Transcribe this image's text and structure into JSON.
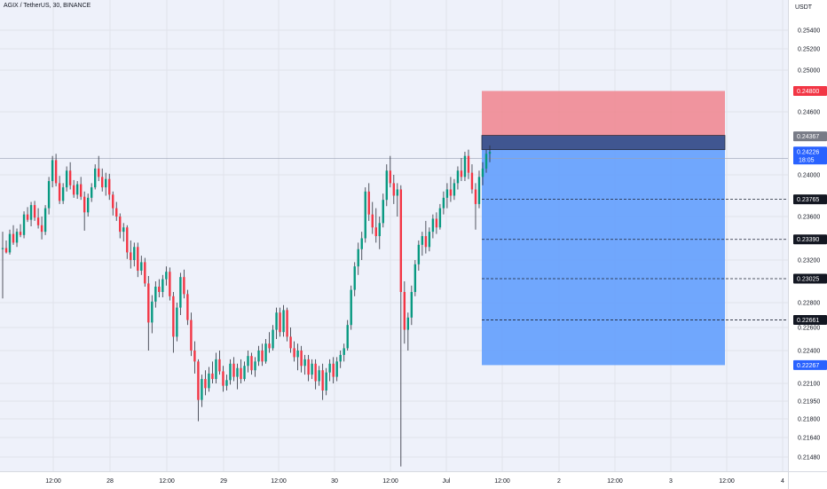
{
  "header": {
    "title": "AGIX / TetherUS, 30, BINANCE"
  },
  "axis": {
    "currency": "USDT"
  },
  "colors": {
    "up": "#089981",
    "down": "#f23645",
    "wick": "#2a2e39",
    "stop_zone": "#f08a93",
    "target_zone": "#5e9cfd",
    "entry_bar": "#3b4e86",
    "background": "#eef1fa"
  },
  "chart_data": {
    "type": "candlestick",
    "symbol": "AGIX / TetherUS",
    "interval": "30",
    "exchange": "BINANCE",
    "y_ticks": [
      "0.25400",
      "0.25200",
      "0.25000",
      "0.24600",
      "0.24000",
      "0.23600",
      "0.23200",
      "0.22800",
      "0.22600",
      "0.22400",
      "0.22100",
      "0.21950",
      "0.21800",
      "0.21640",
      "0.21480"
    ],
    "y_tick_values": [
      0.254,
      0.252,
      0.25,
      0.246,
      0.24,
      0.236,
      0.232,
      0.228,
      0.226,
      0.224,
      0.221,
      0.2195,
      0.218,
      0.2164,
      0.2148
    ],
    "x_labels": [
      "12:00",
      "28",
      "12:00",
      "29",
      "12:00",
      "30",
      "12:00",
      "Jul",
      "12:00",
      "2",
      "12:00",
      "3",
      "12:00",
      "4"
    ],
    "last_price": "0.24226",
    "countdown": "18:05",
    "price_labels": [
      {
        "label": "0.24800",
        "value": 0.248,
        "style": "stop"
      },
      {
        "label": "0.24367",
        "value": 0.24367,
        "style": "entry"
      },
      {
        "label": "0.24226",
        "value": 0.24226,
        "style": "last"
      },
      {
        "label": "0.23765",
        "value": 0.23765,
        "style": "target"
      },
      {
        "label": "0.23390",
        "value": 0.2339,
        "style": "target"
      },
      {
        "label": "0.23025",
        "value": 0.23025,
        "style": "target"
      },
      {
        "label": "0.22661",
        "value": 0.22661,
        "style": "target"
      },
      {
        "label": "0.22267",
        "value": 0.22267,
        "style": "final"
      }
    ],
    "position": {
      "side": "short",
      "entry": 0.24367,
      "stop": 0.248,
      "target": 0.22267,
      "take_profits": [
        0.23765,
        0.2339,
        0.23025,
        0.22661
      ]
    },
    "candles": [
      [
        0.233,
        0.2346,
        0.2284,
        0.2331
      ],
      [
        0.2331,
        0.2338,
        0.2326,
        0.2327
      ],
      [
        0.2327,
        0.2348,
        0.2325,
        0.2344
      ],
      [
        0.2344,
        0.2352,
        0.2334,
        0.2336
      ],
      [
        0.2336,
        0.2349,
        0.2332,
        0.2346
      ],
      [
        0.2346,
        0.2353,
        0.2341,
        0.2343
      ],
      [
        0.2343,
        0.2365,
        0.234,
        0.2362
      ],
      [
        0.2362,
        0.2369,
        0.2355,
        0.2357
      ],
      [
        0.2357,
        0.2374,
        0.2351,
        0.2371
      ],
      [
        0.2371,
        0.2375,
        0.2356,
        0.2359
      ],
      [
        0.2359,
        0.2368,
        0.2349,
        0.2352
      ],
      [
        0.2352,
        0.236,
        0.2339,
        0.2346
      ],
      [
        0.2346,
        0.2371,
        0.2343,
        0.2368
      ],
      [
        0.2368,
        0.2398,
        0.2362,
        0.2394
      ],
      [
        0.2394,
        0.2418,
        0.2388,
        0.2414
      ],
      [
        0.2414,
        0.242,
        0.2389,
        0.2392
      ],
      [
        0.2392,
        0.2399,
        0.2372,
        0.2375
      ],
      [
        0.2375,
        0.2392,
        0.2372,
        0.2388
      ],
      [
        0.2388,
        0.2408,
        0.2384,
        0.2404
      ],
      [
        0.2404,
        0.2412,
        0.2386,
        0.239
      ],
      [
        0.239,
        0.2395,
        0.2378,
        0.2381
      ],
      [
        0.2381,
        0.2394,
        0.2377,
        0.2391
      ],
      [
        0.2391,
        0.2398,
        0.2376,
        0.2379
      ],
      [
        0.2379,
        0.2384,
        0.2347,
        0.2364
      ],
      [
        0.2364,
        0.2382,
        0.236,
        0.2378
      ],
      [
        0.2378,
        0.2392,
        0.2374,
        0.2388
      ],
      [
        0.2388,
        0.241,
        0.2386,
        0.2406
      ],
      [
        0.2406,
        0.2418,
        0.2394,
        0.2398
      ],
      [
        0.2398,
        0.2406,
        0.2384,
        0.2388
      ],
      [
        0.2388,
        0.2402,
        0.238,
        0.2396
      ],
      [
        0.2396,
        0.2401,
        0.2376,
        0.2381
      ],
      [
        0.2381,
        0.2384,
        0.2361,
        0.2368
      ],
      [
        0.2368,
        0.2374,
        0.2356,
        0.236
      ],
      [
        0.236,
        0.2363,
        0.234,
        0.2346
      ],
      [
        0.2346,
        0.2354,
        0.2337,
        0.235
      ],
      [
        0.235,
        0.2352,
        0.2321,
        0.2327
      ],
      [
        0.2327,
        0.2338,
        0.2312,
        0.232
      ],
      [
        0.232,
        0.2336,
        0.2314,
        0.2332
      ],
      [
        0.2332,
        0.2336,
        0.2304,
        0.231
      ],
      [
        0.231,
        0.2324,
        0.2306,
        0.2318
      ],
      [
        0.2318,
        0.2322,
        0.2295,
        0.2298
      ],
      [
        0.2298,
        0.2305,
        0.224,
        0.2264
      ],
      [
        0.2264,
        0.2287,
        0.2255,
        0.2281
      ],
      [
        0.2281,
        0.23,
        0.2276,
        0.2295
      ],
      [
        0.2295,
        0.2302,
        0.2285,
        0.229
      ],
      [
        0.229,
        0.2306,
        0.2285,
        0.2302
      ],
      [
        0.2302,
        0.2314,
        0.2296,
        0.2309
      ],
      [
        0.2309,
        0.2313,
        0.2282,
        0.2286
      ],
      [
        0.2286,
        0.229,
        0.2238,
        0.2252
      ],
      [
        0.2252,
        0.228,
        0.2248,
        0.2276
      ],
      [
        0.2276,
        0.2308,
        0.227,
        0.2304
      ],
      [
        0.2304,
        0.2311,
        0.2284,
        0.2288
      ],
      [
        0.2288,
        0.2292,
        0.2262,
        0.2266
      ],
      [
        0.2266,
        0.2272,
        0.2235,
        0.224
      ],
      [
        0.224,
        0.2248,
        0.2219,
        0.223
      ],
      [
        0.223,
        0.2232,
        0.2178,
        0.2196
      ],
      [
        0.2196,
        0.2218,
        0.219,
        0.2214
      ],
      [
        0.2214,
        0.2222,
        0.22,
        0.2206
      ],
      [
        0.2206,
        0.2225,
        0.2203,
        0.2219
      ],
      [
        0.2219,
        0.223,
        0.221,
        0.2214
      ],
      [
        0.2214,
        0.2238,
        0.221,
        0.2232
      ],
      [
        0.2232,
        0.224,
        0.2218,
        0.2221
      ],
      [
        0.2221,
        0.2226,
        0.2203,
        0.2208
      ],
      [
        0.2208,
        0.2218,
        0.2204,
        0.2213
      ],
      [
        0.2213,
        0.2232,
        0.2209,
        0.2228
      ],
      [
        0.2228,
        0.2234,
        0.2212,
        0.2216
      ],
      [
        0.2216,
        0.2228,
        0.2205,
        0.2224
      ],
      [
        0.2224,
        0.2232,
        0.221,
        0.2214
      ],
      [
        0.2214,
        0.223,
        0.2212,
        0.2226
      ],
      [
        0.2226,
        0.224,
        0.222,
        0.2235
      ],
      [
        0.2235,
        0.2238,
        0.2218,
        0.2222
      ],
      [
        0.2222,
        0.2234,
        0.2216,
        0.223
      ],
      [
        0.223,
        0.2244,
        0.2226,
        0.224
      ],
      [
        0.224,
        0.2246,
        0.2226,
        0.223
      ],
      [
        0.223,
        0.225,
        0.2228,
        0.2246
      ],
      [
        0.2246,
        0.2256,
        0.2238,
        0.2242
      ],
      [
        0.2242,
        0.2262,
        0.224,
        0.2258
      ],
      [
        0.2258,
        0.2276,
        0.225,
        0.2272
      ],
      [
        0.2272,
        0.2276,
        0.2252,
        0.2256
      ],
      [
        0.2256,
        0.2278,
        0.2252,
        0.2274
      ],
      [
        0.2274,
        0.2276,
        0.2248,
        0.2252
      ],
      [
        0.2252,
        0.226,
        0.2238,
        0.2242
      ],
      [
        0.2242,
        0.2248,
        0.223,
        0.2234
      ],
      [
        0.2234,
        0.2246,
        0.2222,
        0.224
      ],
      [
        0.224,
        0.2244,
        0.222,
        0.2226
      ],
      [
        0.2226,
        0.2236,
        0.2218,
        0.2232
      ],
      [
        0.2232,
        0.2236,
        0.2212,
        0.2218
      ],
      [
        0.2218,
        0.2232,
        0.2214,
        0.2228
      ],
      [
        0.2228,
        0.2232,
        0.2205,
        0.2212
      ],
      [
        0.2212,
        0.2226,
        0.2208,
        0.2222
      ],
      [
        0.2222,
        0.2228,
        0.2196,
        0.2204
      ],
      [
        0.2204,
        0.2224,
        0.22,
        0.222
      ],
      [
        0.222,
        0.2232,
        0.2212,
        0.2228
      ],
      [
        0.2228,
        0.2234,
        0.221,
        0.2216
      ],
      [
        0.2216,
        0.2234,
        0.2212,
        0.223
      ],
      [
        0.223,
        0.224,
        0.2224,
        0.2236
      ],
      [
        0.2236,
        0.2246,
        0.223,
        0.2242
      ],
      [
        0.2242,
        0.2266,
        0.224,
        0.2262
      ],
      [
        0.2262,
        0.2296,
        0.2258,
        0.2292
      ],
      [
        0.2292,
        0.2318,
        0.2286,
        0.2314
      ],
      [
        0.2314,
        0.2336,
        0.2306,
        0.233
      ],
      [
        0.233,
        0.2346,
        0.232,
        0.234
      ],
      [
        0.234,
        0.2388,
        0.2336,
        0.2384
      ],
      [
        0.2384,
        0.2392,
        0.2356,
        0.2362
      ],
      [
        0.2362,
        0.2374,
        0.2344,
        0.235
      ],
      [
        0.235,
        0.2368,
        0.2336,
        0.2342
      ],
      [
        0.2342,
        0.236,
        0.233,
        0.2354
      ],
      [
        0.2354,
        0.2382,
        0.235,
        0.2376
      ],
      [
        0.2376,
        0.241,
        0.237,
        0.2404
      ],
      [
        0.2404,
        0.2418,
        0.2388,
        0.2392
      ],
      [
        0.2392,
        0.24,
        0.2372,
        0.238
      ],
      [
        0.238,
        0.2392,
        0.236,
        0.2386
      ],
      [
        0.2386,
        0.239,
        0.214,
        0.229
      ],
      [
        0.229,
        0.23,
        0.2246,
        0.2258
      ],
      [
        0.2258,
        0.2272,
        0.224,
        0.2268
      ],
      [
        0.2268,
        0.2296,
        0.2262,
        0.229
      ],
      [
        0.229,
        0.232,
        0.2286,
        0.2316
      ],
      [
        0.2316,
        0.2338,
        0.231,
        0.2334
      ],
      [
        0.2334,
        0.2346,
        0.2324,
        0.2342
      ],
      [
        0.2342,
        0.2356,
        0.2326,
        0.2332
      ],
      [
        0.2332,
        0.235,
        0.2328,
        0.2346
      ],
      [
        0.2346,
        0.2362,
        0.234,
        0.2358
      ],
      [
        0.2358,
        0.2364,
        0.2344,
        0.235
      ],
      [
        0.235,
        0.2372,
        0.2348,
        0.2368
      ],
      [
        0.2368,
        0.2384,
        0.2362,
        0.2378
      ],
      [
        0.2378,
        0.2392,
        0.2368,
        0.2386
      ],
      [
        0.2386,
        0.2398,
        0.2374,
        0.238
      ],
      [
        0.238,
        0.2396,
        0.2376,
        0.2392
      ],
      [
        0.2392,
        0.2408,
        0.2386,
        0.2404
      ],
      [
        0.2404,
        0.2416,
        0.2394,
        0.2398
      ],
      [
        0.2398,
        0.2422,
        0.2394,
        0.2418
      ],
      [
        0.2418,
        0.2424,
        0.2396,
        0.2402
      ],
      [
        0.2402,
        0.241,
        0.2382,
        0.2386
      ],
      [
        0.2386,
        0.2392,
        0.2348,
        0.2372
      ],
      [
        0.2372,
        0.2404,
        0.2368,
        0.2398
      ],
      [
        0.2398,
        0.2412,
        0.239,
        0.2406
      ],
      [
        0.2406,
        0.2424,
        0.2402,
        0.242
      ],
      [
        0.242,
        0.2428,
        0.2412,
        0.2422
      ]
    ]
  }
}
